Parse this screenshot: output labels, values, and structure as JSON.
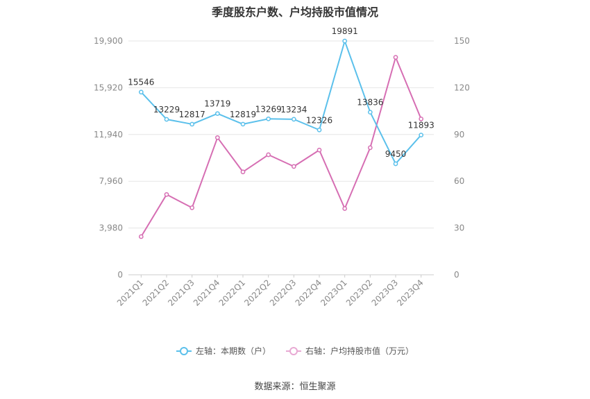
{
  "chart_data": {
    "type": "line",
    "title": "季度股东户数、户均持股市值情况",
    "categories": [
      "2021Q1",
      "2021Q2",
      "2021Q3",
      "2021Q4",
      "2022Q1",
      "2022Q2",
      "2022Q3",
      "2022Q4",
      "2023Q1",
      "2023Q2",
      "2023Q3",
      "2023Q4"
    ],
    "left_axis": {
      "ticks": [
        "0",
        "3,980",
        "7,960",
        "11,940",
        "15,920",
        "19,900"
      ],
      "ylim": [
        0,
        19900
      ]
    },
    "right_axis": {
      "ticks": [
        "0",
        "30",
        "60",
        "90",
        "120",
        "150"
      ],
      "ylim": [
        0,
        150
      ]
    },
    "grid": true,
    "legend_position": "bottom",
    "series": [
      {
        "name": "左轴：本期数（户）",
        "axis": "left",
        "color": "#5bc0eb",
        "show_labels": true,
        "values": [
          15546,
          13229,
          12817,
          13719,
          12819,
          13269,
          13234,
          12326,
          19891,
          13836,
          9450,
          11893
        ],
        "labels": [
          "15546",
          "13229",
          "12817",
          "13719",
          "12819",
          "13269",
          "13234",
          "12326",
          "19891",
          "13836",
          "9450",
          "11893"
        ]
      },
      {
        "name": "右轴：户均持股市值（万元）",
        "axis": "right",
        "color": "#d66eb3",
        "show_labels": false,
        "values": [
          24.5,
          51.5,
          43,
          88,
          66,
          77,
          69.5,
          80,
          42.5,
          81.5,
          139.5,
          100
        ]
      }
    ]
  },
  "source": "数据来源：恒生聚源"
}
